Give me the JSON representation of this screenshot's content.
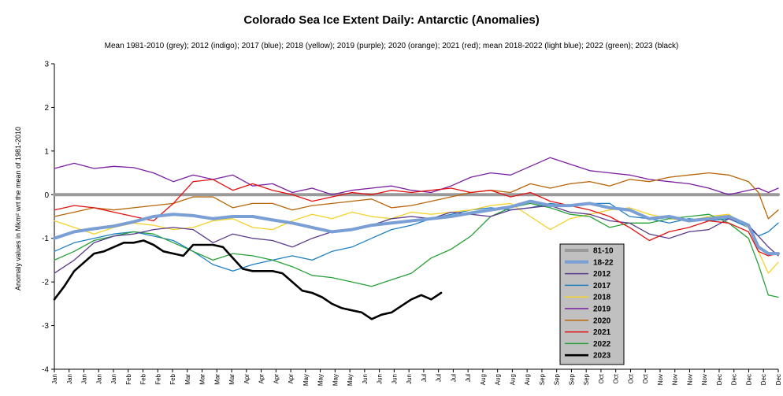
{
  "chart_data": {
    "type": "line",
    "title": "Colorado Sea Ice Extent Daily: Antarctic (Anomalies)",
    "subtitle": "Mean 1981-2010 (grey); 2012 (indigo); 2017 (blue); 2018 (yellow); 2019 (purple); 2020 (orange); 2021 (red); mean 2018-2022 (light blue); 2022 (green); 2023 (black)",
    "ylabel": "Anomaly values in Mkm² wrt the mean of 1981-2010",
    "xlabel": "",
    "ylim": [
      -4,
      3
    ],
    "yticks": [
      "3",
      "2",
      "1",
      "0",
      "-1",
      "-2",
      "-3",
      "-4"
    ],
    "xtick_labels": [
      "Jan",
      "Jan",
      "Jan",
      "Jan",
      "Jan",
      "Feb",
      "Feb",
      "Feb",
      "Feb",
      "Mar",
      "Mar",
      "Mar",
      "Mar",
      "Apr",
      "Apr",
      "Apr",
      "Apr",
      "May",
      "May",
      "May",
      "May",
      "Jun",
      "Jun",
      "Jun",
      "Jun",
      "Jul",
      "Jul",
      "Jul",
      "Jul",
      "Aug",
      "Aug",
      "Aug",
      "Aug",
      "Sep",
      "Sep",
      "Sep",
      "Sep",
      "Oct",
      "Oct",
      "Oct",
      "Oct",
      "Nov",
      "Nov",
      "Nov",
      "Nov",
      "Dec",
      "Dec",
      "Dec",
      "Dec",
      "Dec"
    ],
    "x_domain": [
      0,
      365
    ],
    "grid": false,
    "legend_position": "inside-bottom-right",
    "series": [
      {
        "name": "81-10",
        "color": "#999999",
        "width": 4,
        "x": [
          0,
          365
        ],
        "values": [
          0,
          0
        ]
      },
      {
        "name": "18-22",
        "color": "#7a9fd4",
        "width": 4,
        "x": [
          0,
          10,
          20,
          30,
          40,
          50,
          60,
          70,
          80,
          90,
          100,
          110,
          120,
          130,
          140,
          150,
          160,
          170,
          180,
          190,
          200,
          210,
          220,
          230,
          240,
          250,
          260,
          270,
          280,
          290,
          300,
          310,
          320,
          330,
          340,
          350,
          355,
          360,
          365
        ],
        "values": [
          -1.0,
          -0.85,
          -0.78,
          -0.72,
          -0.62,
          -0.5,
          -0.45,
          -0.48,
          -0.55,
          -0.5,
          -0.5,
          -0.58,
          -0.65,
          -0.75,
          -0.85,
          -0.8,
          -0.7,
          -0.65,
          -0.6,
          -0.55,
          -0.5,
          -0.42,
          -0.35,
          -0.28,
          -0.15,
          -0.25,
          -0.25,
          -0.2,
          -0.3,
          -0.35,
          -0.55,
          -0.5,
          -0.6,
          -0.55,
          -0.5,
          -0.7,
          -1.2,
          -1.35,
          -1.35
        ]
      },
      {
        "name": "2012",
        "color": "#5a3a8c",
        "width": 1.3,
        "x": [
          0,
          10,
          20,
          30,
          40,
          50,
          60,
          70,
          80,
          90,
          100,
          110,
          120,
          130,
          140,
          150,
          160,
          170,
          180,
          190,
          200,
          210,
          220,
          230,
          240,
          250,
          260,
          270,
          280,
          290,
          300,
          310,
          320,
          330,
          340,
          350,
          355,
          360,
          365
        ],
        "values": [
          -1.8,
          -1.5,
          -1.1,
          -0.95,
          -0.9,
          -0.8,
          -0.75,
          -0.8,
          -1.1,
          -0.9,
          -1.0,
          -1.05,
          -1.2,
          -1.0,
          -0.85,
          -0.8,
          -0.7,
          -0.55,
          -0.5,
          -0.55,
          -0.4,
          -0.45,
          -0.5,
          -0.35,
          -0.3,
          -0.25,
          -0.4,
          -0.45,
          -0.6,
          -0.65,
          -0.9,
          -1.0,
          -0.85,
          -0.8,
          -0.55,
          -0.7,
          -0.95,
          -1.2,
          -1.4
        ]
      },
      {
        "name": "2017",
        "color": "#1f7fc4",
        "width": 1.3,
        "x": [
          0,
          10,
          20,
          30,
          40,
          50,
          60,
          70,
          80,
          90,
          100,
          110,
          120,
          130,
          140,
          150,
          160,
          170,
          180,
          190,
          200,
          210,
          220,
          230,
          240,
          250,
          260,
          270,
          280,
          290,
          300,
          310,
          320,
          330,
          340,
          350,
          355,
          360,
          365
        ],
        "values": [
          -1.3,
          -1.1,
          -1.0,
          -0.9,
          -0.85,
          -0.95,
          -1.05,
          -1.3,
          -1.6,
          -1.75,
          -1.6,
          -1.5,
          -1.4,
          -1.5,
          -1.3,
          -1.2,
          -1.0,
          -0.8,
          -0.7,
          -0.55,
          -0.45,
          -0.35,
          -0.3,
          -0.35,
          -0.3,
          -0.2,
          -0.25,
          -0.2,
          -0.2,
          -0.5,
          -0.55,
          -0.65,
          -0.55,
          -0.6,
          -0.55,
          -0.75,
          -0.95,
          -0.85,
          -0.65
        ]
      },
      {
        "name": "2018",
        "color": "#f4d22a",
        "width": 1.3,
        "x": [
          0,
          10,
          20,
          30,
          40,
          50,
          60,
          70,
          80,
          90,
          100,
          110,
          120,
          130,
          140,
          150,
          160,
          170,
          180,
          190,
          200,
          210,
          220,
          230,
          240,
          250,
          260,
          270,
          280,
          290,
          300,
          310,
          320,
          330,
          340,
          350,
          355,
          360,
          365
        ],
        "values": [
          -0.6,
          -0.75,
          -0.9,
          -0.75,
          -0.65,
          -0.7,
          -0.8,
          -0.75,
          -0.6,
          -0.55,
          -0.75,
          -0.8,
          -0.6,
          -0.45,
          -0.55,
          -0.4,
          -0.5,
          -0.55,
          -0.4,
          -0.45,
          -0.4,
          -0.35,
          -0.25,
          -0.2,
          -0.5,
          -0.8,
          -0.55,
          -0.45,
          -0.35,
          -0.3,
          -0.45,
          -0.55,
          -0.6,
          -0.5,
          -0.45,
          -0.75,
          -1.3,
          -1.8,
          -1.55
        ]
      },
      {
        "name": "2019",
        "color": "#7b1fa2",
        "width": 1.3,
        "x": [
          0,
          10,
          20,
          30,
          40,
          50,
          60,
          70,
          80,
          90,
          100,
          110,
          120,
          130,
          140,
          150,
          160,
          170,
          180,
          190,
          200,
          210,
          220,
          230,
          240,
          250,
          260,
          270,
          280,
          290,
          300,
          310,
          320,
          330,
          340,
          350,
          355,
          360,
          365
        ],
        "values": [
          0.6,
          0.72,
          0.6,
          0.65,
          0.62,
          0.5,
          0.3,
          0.45,
          0.35,
          0.45,
          0.2,
          0.25,
          0.05,
          0.15,
          0.0,
          0.1,
          0.15,
          0.2,
          0.1,
          0.05,
          0.2,
          0.4,
          0.5,
          0.45,
          0.65,
          0.85,
          0.7,
          0.55,
          0.5,
          0.45,
          0.35,
          0.3,
          0.25,
          0.15,
          0.0,
          0.1,
          0.15,
          0.05,
          0.15
        ]
      },
      {
        "name": "2020",
        "color": "#b8650a",
        "width": 1.3,
        "x": [
          0,
          10,
          20,
          30,
          40,
          50,
          60,
          70,
          80,
          90,
          100,
          110,
          120,
          130,
          140,
          150,
          160,
          170,
          180,
          190,
          200,
          210,
          220,
          230,
          240,
          250,
          260,
          270,
          280,
          290,
          300,
          310,
          320,
          330,
          340,
          350,
          355,
          360,
          365
        ],
        "values": [
          -0.5,
          -0.4,
          -0.3,
          -0.35,
          -0.3,
          -0.25,
          -0.2,
          -0.05,
          -0.05,
          -0.3,
          -0.2,
          -0.2,
          -0.35,
          -0.25,
          -0.2,
          -0.15,
          -0.1,
          -0.3,
          -0.25,
          -0.15,
          -0.05,
          0.05,
          0.1,
          0.05,
          0.25,
          0.15,
          0.25,
          0.3,
          0.2,
          0.35,
          0.3,
          0.4,
          0.45,
          0.5,
          0.45,
          0.3,
          0.05,
          -0.55,
          -0.35
        ]
      },
      {
        "name": "2021",
        "color": "#e01010",
        "width": 1.3,
        "x": [
          0,
          10,
          20,
          30,
          40,
          50,
          60,
          70,
          80,
          90,
          100,
          110,
          120,
          130,
          140,
          150,
          160,
          170,
          180,
          190,
          200,
          210,
          220,
          230,
          240,
          250,
          260,
          270,
          280,
          290,
          300,
          310,
          320,
          330,
          340,
          350,
          355,
          360,
          365
        ],
        "values": [
          -0.35,
          -0.25,
          -0.3,
          -0.4,
          -0.5,
          -0.6,
          -0.2,
          0.3,
          0.35,
          0.1,
          0.25,
          0.1,
          0.0,
          -0.15,
          -0.05,
          0.05,
          0.0,
          0.1,
          0.05,
          0.1,
          0.15,
          0.05,
          0.1,
          -0.05,
          0.05,
          -0.15,
          -0.25,
          -0.35,
          -0.5,
          -0.75,
          -1.05,
          -0.85,
          -0.75,
          -0.6,
          -0.65,
          -0.85,
          -1.3,
          -1.4,
          -1.35
        ]
      },
      {
        "name": "2022",
        "color": "#28a039",
        "width": 1.3,
        "x": [
          0,
          10,
          20,
          30,
          40,
          50,
          60,
          70,
          80,
          90,
          100,
          110,
          120,
          130,
          140,
          150,
          160,
          170,
          180,
          190,
          200,
          210,
          220,
          230,
          240,
          250,
          260,
          270,
          280,
          290,
          300,
          310,
          320,
          330,
          340,
          350,
          355,
          360,
          365
        ],
        "values": [
          -1.5,
          -1.3,
          -1.05,
          -0.95,
          -0.85,
          -0.9,
          -1.1,
          -1.3,
          -1.5,
          -1.35,
          -1.4,
          -1.5,
          -1.65,
          -1.85,
          -1.9,
          -2.0,
          -2.1,
          -1.95,
          -1.8,
          -1.45,
          -1.25,
          -0.95,
          -0.5,
          -0.3,
          -0.2,
          -0.3,
          -0.45,
          -0.5,
          -0.75,
          -0.65,
          -0.65,
          -0.55,
          -0.5,
          -0.45,
          -0.65,
          -1.0,
          -1.6,
          -2.3,
          -2.35
        ]
      },
      {
        "name": "2023",
        "color": "#000000",
        "width": 2.6,
        "x": [
          0,
          5,
          10,
          15,
          20,
          25,
          30,
          35,
          40,
          45,
          50,
          55,
          60,
          65,
          70,
          75,
          80,
          85,
          90,
          95,
          100,
          105,
          110,
          115,
          120,
          125,
          130,
          135,
          140,
          145,
          150,
          155,
          160,
          165,
          170,
          175,
          180,
          185,
          190,
          195
        ],
        "values": [
          -2.4,
          -2.1,
          -1.75,
          -1.55,
          -1.35,
          -1.3,
          -1.2,
          -1.1,
          -1.1,
          -1.05,
          -1.15,
          -1.3,
          -1.35,
          -1.4,
          -1.15,
          -1.15,
          -1.15,
          -1.2,
          -1.45,
          -1.7,
          -1.75,
          -1.75,
          -1.75,
          -1.8,
          -2.0,
          -2.2,
          -2.25,
          -2.35,
          -2.5,
          -2.6,
          -2.65,
          -2.7,
          -2.85,
          -2.75,
          -2.7,
          -2.55,
          -2.4,
          -2.3,
          -2.4,
          -2.25
        ]
      }
    ]
  }
}
